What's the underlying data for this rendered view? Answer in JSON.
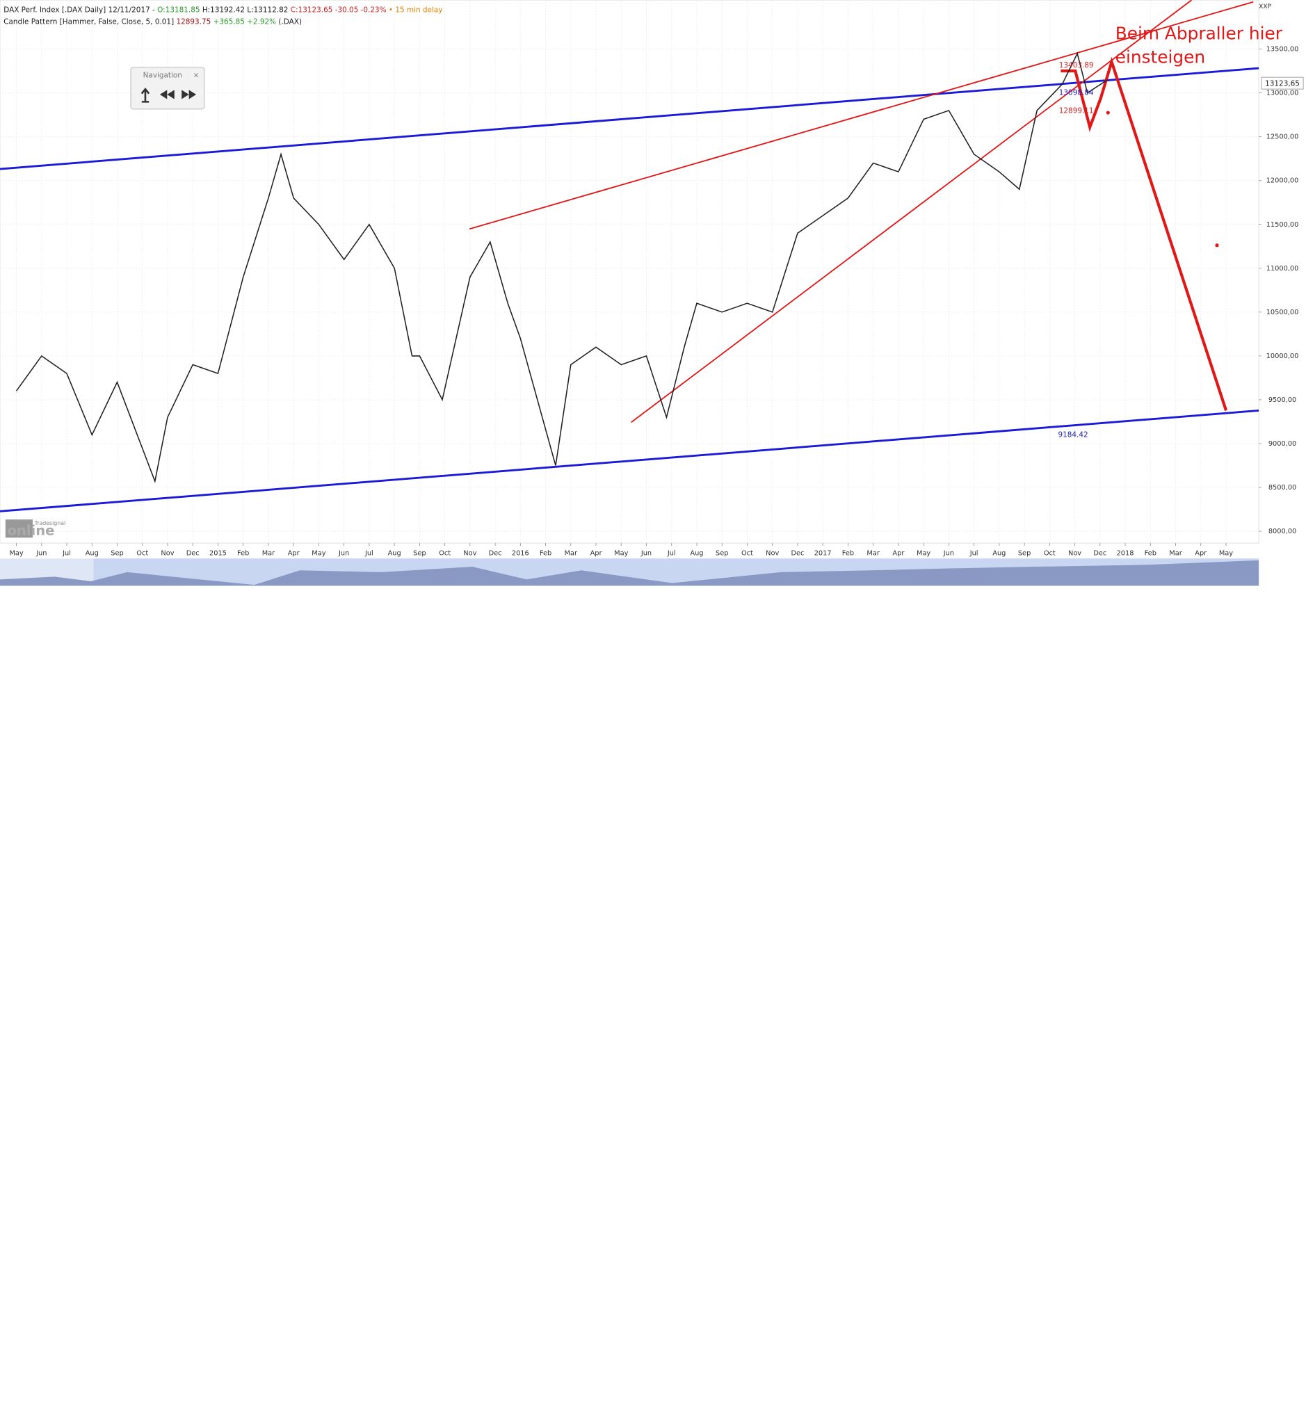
{
  "header": {
    "line1": [
      {
        "text": "DAX Perf. Index [.DAX Daily] 12/11/2017 - ",
        "color": "#222222"
      },
      {
        "text": "O:13181.85",
        "color": "#2a9a2a"
      },
      {
        "text": " H:13192.42 L:13112.82 ",
        "color": "#222222"
      },
      {
        "text": "C:13123.65 -30.05 -0.23%",
        "color": "#d02020"
      },
      {
        "text": " • 15 min delay",
        "color": "#e08000"
      }
    ],
    "line2": [
      {
        "text": "Candle Pattern [Hammer, False, Close, 5, 0.01] ",
        "color": "#222222"
      },
      {
        "text": "12893.75",
        "color": "#a01010"
      },
      {
        "text": " +365.85 +2.92%",
        "color": "#2a9a2a"
      },
      {
        "text": " (.DAX)",
        "color": "#222222"
      }
    ]
  },
  "navigation": {
    "title": "Navigation",
    "close": "×"
  },
  "watermark": {
    "brand": "Tradesignal",
    "name": "online"
  },
  "corner_label": "XXP",
  "chart_data": {
    "type": "line",
    "last_price": "13123,65",
    "annotations": {
      "note1": "Beim Abpraller hier",
      "note2": "einsteigen",
      "level_high": "13403.89",
      "level_mid": "13098.84",
      "level_low": "12899.11",
      "level_target": "9184.42"
    },
    "series": [
      {
        "name": "DAX",
        "color": "#222222",
        "x": [
          0,
          1,
          2,
          3,
          4,
          5.5,
          6,
          7,
          8,
          9,
          10,
          10.5,
          11,
          12,
          13,
          14,
          15,
          15.7,
          16,
          16.9,
          18,
          18.8,
          19.5,
          20,
          21.4,
          22,
          23,
          24,
          25,
          25.8,
          26.5,
          27,
          28,
          29,
          30,
          31,
          32,
          33,
          34,
          35,
          36,
          37,
          38,
          39,
          39.8,
          40.5,
          41.5,
          42.1,
          42.5,
          43.3
        ],
        "values": [
          9600,
          10000,
          9800,
          9100,
          9700,
          8570,
          9300,
          9900,
          9800,
          10900,
          11800,
          12300,
          11800,
          11500,
          11100,
          11500,
          11000,
          10000,
          10000,
          9500,
          10900,
          11300,
          10600,
          10200,
          8750,
          9900,
          10100,
          9900,
          10000,
          9300,
          10100,
          10600,
          10500,
          10600,
          10500,
          11400,
          11600,
          11800,
          12200,
          12100,
          12700,
          12800,
          12300,
          12100,
          11900,
          12800,
          13100,
          13450,
          13000,
          13150
        ]
      }
    ],
    "xlim": [
      -0.65,
      49.3
    ],
    "xticks": [
      {
        "value": 0,
        "label": "May"
      },
      {
        "value": 1,
        "label": "Jun"
      },
      {
        "value": 2,
        "label": "Jul"
      },
      {
        "value": 3,
        "label": "Aug"
      },
      {
        "value": 4,
        "label": "Sep"
      },
      {
        "value": 5,
        "label": "Oct"
      },
      {
        "value": 6,
        "label": "Nov"
      },
      {
        "value": 7,
        "label": "Dec"
      },
      {
        "value": 8,
        "label": "2015"
      },
      {
        "value": 9,
        "label": "Feb"
      },
      {
        "value": 10,
        "label": "Mar"
      },
      {
        "value": 11,
        "label": "Apr"
      },
      {
        "value": 12,
        "label": "May"
      },
      {
        "value": 13,
        "label": "Jun"
      },
      {
        "value": 14,
        "label": "Jul"
      },
      {
        "value": 15,
        "label": "Aug"
      },
      {
        "value": 16,
        "label": "Sep"
      },
      {
        "value": 17,
        "label": "Oct"
      },
      {
        "value": 18,
        "label": "Nov"
      },
      {
        "value": 19,
        "label": "Dec"
      },
      {
        "value": 20,
        "label": "2016"
      },
      {
        "value": 21,
        "label": "Feb"
      },
      {
        "value": 22,
        "label": "Mar"
      },
      {
        "value": 23,
        "label": "Apr"
      },
      {
        "value": 24,
        "label": "May"
      },
      {
        "value": 25,
        "label": "Jun"
      },
      {
        "value": 26,
        "label": "Jul"
      },
      {
        "value": 27,
        "label": "Aug"
      },
      {
        "value": 28,
        "label": "Sep"
      },
      {
        "value": 29,
        "label": "Oct"
      },
      {
        "value": 30,
        "label": "Nov"
      },
      {
        "value": 31,
        "label": "Dec"
      },
      {
        "value": 32,
        "label": "2017"
      },
      {
        "value": 33,
        "label": "Feb"
      },
      {
        "value": 34,
        "label": "Mar"
      },
      {
        "value": 35,
        "label": "Apr"
      },
      {
        "value": 36,
        "label": "May"
      },
      {
        "value": 37,
        "label": "Jun"
      },
      {
        "value": 38,
        "label": "Jul"
      },
      {
        "value": 39,
        "label": "Aug"
      },
      {
        "value": 40,
        "label": "Sep"
      },
      {
        "value": 41,
        "label": "Oct"
      },
      {
        "value": 42,
        "label": "Nov"
      },
      {
        "value": 43,
        "label": "Dec"
      },
      {
        "value": 44,
        "label": "2018"
      },
      {
        "value": 45,
        "label": "Feb"
      },
      {
        "value": 46,
        "label": "Mar"
      },
      {
        "value": 47,
        "label": "Apr"
      },
      {
        "value": 48,
        "label": "May"
      }
    ],
    "ylim": [
      7865,
      14059
    ],
    "yticks": [
      {
        "value": 8000,
        "label": "8000,00"
      },
      {
        "value": 8500,
        "label": "8500,00"
      },
      {
        "value": 9000,
        "label": "9000,00"
      },
      {
        "value": 9500,
        "label": "9500,00"
      },
      {
        "value": 10000,
        "label": "10000,00"
      },
      {
        "value": 10500,
        "label": "10500,00"
      },
      {
        "value": 11000,
        "label": "11000,00"
      },
      {
        "value": 11500,
        "label": "11500,00"
      },
      {
        "value": 12000,
        "label": "12000,00"
      },
      {
        "value": 12500,
        "label": "12500,00"
      },
      {
        "value": 13000,
        "label": "13000,00"
      },
      {
        "value": 13500,
        "label": "13500,00"
      }
    ],
    "grid": true
  }
}
